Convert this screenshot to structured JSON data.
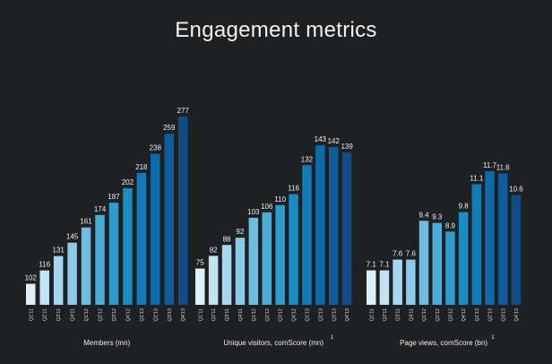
{
  "title": "Engagement metrics",
  "palette": [
    "#dcf0fb",
    "#c1e4f5",
    "#a6d7ef",
    "#8ccae9",
    "#6ebde1",
    "#4cacd8",
    "#2e9bcd",
    "#1b8bc4",
    "#117bba",
    "#0d6aab",
    "#0e5c9c",
    "#114b88",
    "#133f7a"
  ],
  "chart_data": [
    {
      "type": "bar",
      "xlabel": "Members (mn)",
      "footnote": "",
      "categories": [
        "Q1'11",
        "Q2'11",
        "Q3'11",
        "Q4'11",
        "Q1'12",
        "Q2'12",
        "Q3'12",
        "Q4'12",
        "Q1'13",
        "Q2'13",
        "Q3'13",
        "Q4'13"
      ],
      "values": [
        102,
        116,
        131,
        145,
        161,
        174,
        187,
        202,
        218,
        238,
        259,
        277
      ],
      "labels": [
        "102",
        "116",
        "131",
        "145",
        "161",
        "174",
        "187",
        "202",
        "218",
        "238",
        "259",
        "277"
      ],
      "ylim": [
        80,
        277
      ]
    },
    {
      "type": "bar",
      "xlabel": "Unique visitors, comScore (mn)",
      "footnote": "1",
      "categories": [
        "Q1'11",
        "Q2'11",
        "Q3'11",
        "Q4'11",
        "Q1'12",
        "Q2'12",
        "Q3'12",
        "Q4'12",
        "Q1'13",
        "Q2'13",
        "Q3'13",
        "Q4'13"
      ],
      "values": [
        75,
        82,
        88,
        92,
        103,
        106,
        110,
        116,
        132,
        143,
        142,
        139
      ],
      "labels": [
        "75",
        "82",
        "88",
        "92",
        "103",
        "106",
        "110",
        "116",
        "132",
        "143",
        "142",
        "139"
      ],
      "ylim": [
        55,
        143
      ]
    },
    {
      "type": "bar",
      "xlabel": "Page views, comScore (bn)",
      "footnote": "1",
      "categories": [
        "Q1'11",
        "Q2'11",
        "Q3'11",
        "Q4'11",
        "Q1'12",
        "Q2'12",
        "Q3'12",
        "Q4'12",
        "Q1'13",
        "Q2'13",
        "Q3'13",
        "Q4'13"
      ],
      "values": [
        7.1,
        7.1,
        7.6,
        7.6,
        9.4,
        9.3,
        8.9,
        9.8,
        11.1,
        11.7,
        11.6,
        10.6
      ],
      "labels": [
        "7.1",
        "7.1",
        "7.6",
        "7.6",
        "9.4",
        "9.3",
        "8.9",
        "9.8",
        "11.1",
        "11.7",
        "11.6",
        "10.6"
      ],
      "ylim": [
        5.5,
        11.7
      ]
    }
  ]
}
